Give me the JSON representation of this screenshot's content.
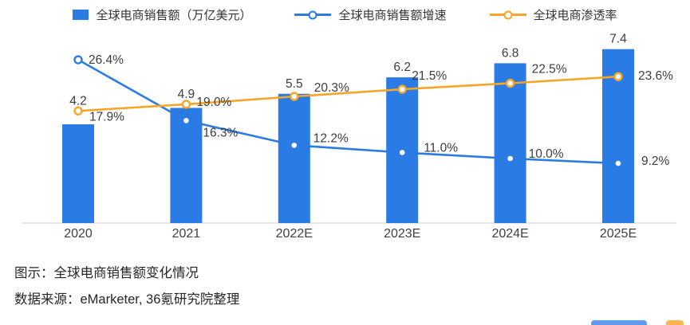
{
  "legend": {
    "items": [
      {
        "label": "全球电商销售额（万亿美元）",
        "marker": "bar",
        "color": "#2B7BE4"
      },
      {
        "label": "全球电商销售额增速",
        "marker": "line-dot",
        "color": "#2B7BE4"
      },
      {
        "label": "全球电商渗透率",
        "marker": "line-dot",
        "color": "#F8A426"
      }
    ]
  },
  "chart_data": {
    "type": "bar+line",
    "categories": [
      "2020",
      "2021",
      "2022E",
      "2023E",
      "2024E",
      "2025E"
    ],
    "series": [
      {
        "name": "全球电商销售额（万亿美元）",
        "type": "bar",
        "axis": "left",
        "color": "#2B7BE4",
        "values": [
          4.2,
          4.9,
          5.5,
          6.2,
          6.8,
          7.4
        ],
        "labels": [
          "4.2",
          "4.9",
          "5.5",
          "6.2",
          "6.8",
          "7.4"
        ]
      },
      {
        "name": "全球电商销售额增速",
        "type": "line",
        "axis": "right",
        "color": "#2B7BE4",
        "marker": "hollow-circle",
        "values": [
          26.4,
          16.3,
          12.2,
          11.0,
          10.0,
          9.2
        ],
        "labels": [
          "26.4%",
          "16.3%",
          "12.2%",
          "11.0%",
          "10.0%",
          "9.2%"
        ]
      },
      {
        "name": "全球电商渗透率",
        "type": "line",
        "axis": "right",
        "color": "#F8A426",
        "marker": "hollow-circle",
        "values": [
          17.9,
          19.0,
          20.3,
          21.5,
          22.5,
          23.6
        ],
        "labels": [
          "17.9%",
          "19.0%",
          "20.3%",
          "21.5%",
          "22.5%",
          "23.6%"
        ]
      }
    ],
    "left_axis_range": [
      0,
      8
    ],
    "right_axis_range": [
      0,
      30
    ],
    "grid": false,
    "legend_position": "top",
    "x_axis_line": true
  },
  "caption": {
    "line1": "图示：全球电商销售额变化情况",
    "line2": "数据来源：eMarketer, 36氪研究院整理"
  },
  "colors": {
    "bar": "#2B7BE4",
    "growth_line": "#2B7BE4",
    "penetration_line": "#F8A426",
    "axis_line": "#D8D8D8",
    "label_text": "#3D3D3D",
    "caption_text": "#262626",
    "background": "#FFFFFF"
  }
}
